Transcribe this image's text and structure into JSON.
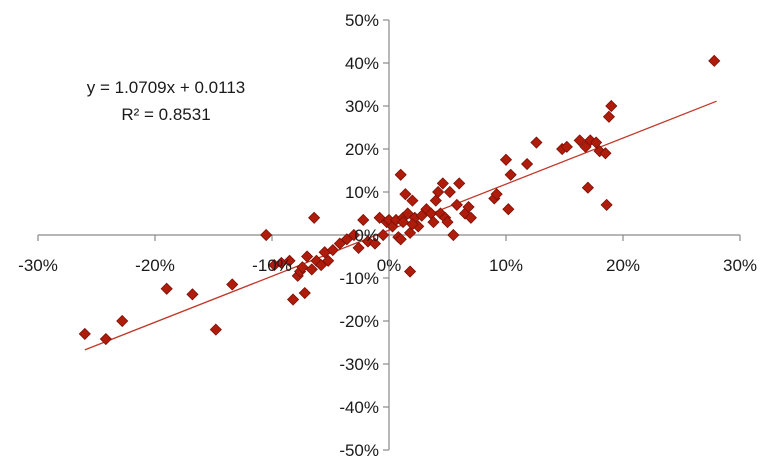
{
  "chart_data": {
    "type": "scatter",
    "title": "",
    "xlabel": "",
    "ylabel": "",
    "xlim": [
      -0.3,
      0.3
    ],
    "ylim": [
      -0.5,
      0.5
    ],
    "x_ticks": [
      -0.3,
      -0.2,
      -0.1,
      0.0,
      0.1,
      0.2,
      0.3
    ],
    "x_tick_labels": [
      "-30%",
      "-20%",
      "-10%",
      "0%",
      "10%",
      "20%",
      "30%"
    ],
    "y_ticks": [
      0.5,
      0.4,
      0.3,
      0.2,
      0.1,
      0.0,
      -0.1,
      -0.2,
      -0.3,
      -0.4,
      -0.5
    ],
    "y_tick_labels": [
      "50%",
      "40%",
      "30%",
      "20%",
      "10%",
      "0%",
      "-10%",
      "-20%",
      "-30%",
      "-40%",
      "-50%"
    ],
    "grid": false,
    "legend": "none",
    "colors": {
      "marker": "#b01c0c",
      "marker_edge": "#7a1005",
      "trendline": "#c0392b",
      "axis": "#8a8a8a",
      "text": "#1a1a1a"
    },
    "annotations": {
      "equation": "y = 1.0709x + 0.0113",
      "r_squared": "R² = 0.8531"
    },
    "trendline": {
      "slope": 1.0709,
      "intercept": 0.0113,
      "x_range": [
        -0.26,
        0.28
      ]
    },
    "series": [
      {
        "x": [
          -0.26,
          -0.242,
          -0.228,
          -0.19,
          -0.168,
          -0.148,
          -0.134,
          -0.105,
          -0.098,
          -0.092,
          -0.085,
          -0.082,
          -0.078,
          -0.076,
          -0.074,
          -0.072,
          -0.07,
          -0.066,
          -0.064,
          -0.062,
          -0.058,
          -0.055,
          -0.052,
          -0.048,
          -0.042,
          -0.036,
          -0.03,
          -0.026,
          -0.022,
          -0.018,
          -0.012,
          -0.008,
          -0.005,
          -0.002,
          0.0,
          0.003,
          0.006,
          0.008,
          0.01,
          0.012,
          0.014,
          0.016,
          0.018,
          0.02,
          0.022,
          0.025,
          0.028,
          0.032,
          0.036,
          0.038,
          0.04,
          0.042,
          0.044,
          0.046,
          0.048,
          0.05,
          0.052,
          0.055,
          0.058,
          0.06,
          0.065,
          0.068,
          0.07,
          0.01,
          0.012,
          0.018,
          0.02,
          0.09,
          0.092,
          0.1,
          0.102,
          0.104,
          0.118,
          0.126,
          0.148,
          0.152,
          0.163,
          0.168,
          0.17,
          0.172,
          0.177,
          0.18,
          0.185,
          0.186,
          0.188,
          0.19,
          0.278
        ],
        "y": [
          -0.23,
          -0.242,
          -0.2,
          -0.125,
          -0.138,
          -0.22,
          -0.115,
          0.0,
          -0.07,
          -0.065,
          -0.06,
          -0.15,
          -0.095,
          -0.085,
          -0.075,
          -0.135,
          -0.05,
          -0.08,
          0.04,
          -0.06,
          -0.07,
          -0.04,
          -0.06,
          -0.035,
          -0.02,
          -0.01,
          0.0,
          -0.03,
          0.035,
          -0.015,
          -0.02,
          0.04,
          0.0,
          0.03,
          0.035,
          0.02,
          0.035,
          -0.005,
          0.14,
          0.04,
          0.095,
          0.05,
          -0.085,
          0.08,
          0.04,
          0.02,
          0.045,
          0.06,
          0.05,
          0.03,
          0.08,
          0.1,
          0.05,
          0.12,
          0.04,
          0.03,
          0.1,
          0.0,
          0.07,
          0.12,
          0.05,
          0.065,
          0.04,
          -0.01,
          0.03,
          0.005,
          0.025,
          0.085,
          0.095,
          0.175,
          0.06,
          0.14,
          0.165,
          0.215,
          0.2,
          0.205,
          0.22,
          0.205,
          0.11,
          0.22,
          0.215,
          0.195,
          0.19,
          0.07,
          0.275,
          0.3,
          0.405
        ]
      }
    ]
  }
}
